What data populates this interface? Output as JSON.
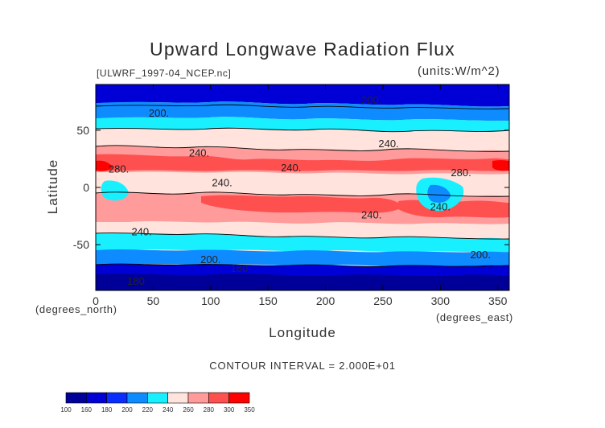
{
  "chart_data": {
    "type": "heatmap",
    "title": "Upward Longwave Radiation Flux",
    "source_note": "[ULWRF_1997-04_NCEP.nc]",
    "units": "(units:W/m^2)",
    "xlabel": "Longitude",
    "ylabel": "Latitude",
    "x_units_note": "(degrees_north)",
    "y_units_note": "(degrees_east)",
    "x_ticks": [
      0,
      50,
      100,
      150,
      200,
      250,
      300,
      350
    ],
    "y_ticks": [
      50,
      0,
      -50
    ],
    "xlim": [
      0,
      360
    ],
    "ylim": [
      -90,
      90
    ],
    "contour_interval_text": "CONTOUR INTERVAL = 2.000E+01",
    "contour_labels": [
      {
        "text": "200.",
        "lon": 55,
        "lat": 62
      },
      {
        "text": "200.",
        "lon": 240,
        "lat": 73
      },
      {
        "text": "240.",
        "lon": 90,
        "lat": 27
      },
      {
        "text": "240.",
        "lon": 255,
        "lat": 35
      },
      {
        "text": "240.",
        "lon": 170,
        "lat": 14
      },
      {
        "text": "280.",
        "lon": 20,
        "lat": 13
      },
      {
        "text": "280.",
        "lon": 318,
        "lat": 10
      },
      {
        "text": "240.",
        "lon": 110,
        "lat": 1
      },
      {
        "text": "240.",
        "lon": 300,
        "lat": -20
      },
      {
        "text": "240.",
        "lon": 240,
        "lat": -27
      },
      {
        "text": "240.",
        "lon": 40,
        "lat": -42
      },
      {
        "text": "200.",
        "lon": 100,
        "lat": -66
      },
      {
        "text": "200.",
        "lon": 335,
        "lat": -62
      },
      {
        "text": "180",
        "lon": 125,
        "lat": -74
      },
      {
        "text": "180",
        "lon": 35,
        "lat": -85
      }
    ],
    "colorbar": {
      "levels": [
        "100",
        "160",
        "180",
        "200",
        "220",
        "240",
        "260",
        "280",
        "300",
        "350"
      ],
      "colors": [
        "#000099",
        "#0000d6",
        "#0a2dff",
        "#0e8cff",
        "#18f0ff",
        "#ffe3dc",
        "#ff9b9b",
        "#ff5050",
        "#ff0000"
      ]
    }
  }
}
